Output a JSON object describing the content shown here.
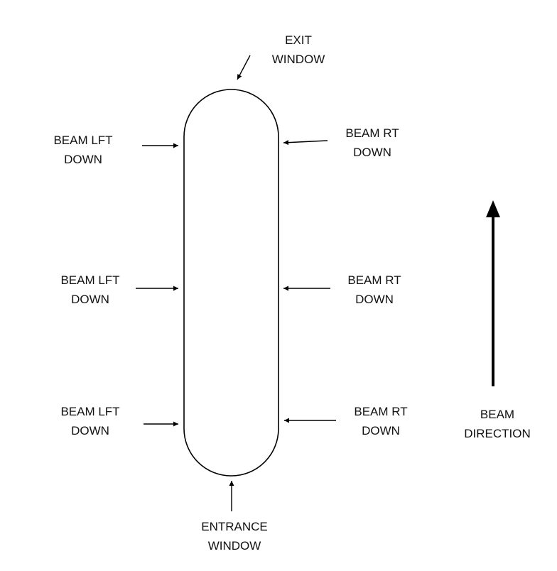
{
  "diagram": {
    "colors": {
      "line": "#000000",
      "text": "#111111",
      "background": "#ffffff"
    },
    "labels": {
      "exit": [
        "EXIT",
        "WINDOW"
      ],
      "entrance": [
        "ENTRANCE",
        "WINDOW"
      ],
      "left_top": [
        "BEAM LFT",
        "DOWN"
      ],
      "left_mid": [
        "BEAM LFT",
        "DOWN"
      ],
      "left_bot": [
        "BEAM LFT",
        "DOWN"
      ],
      "right_top": [
        "BEAM RT",
        "DOWN"
      ],
      "right_mid": [
        "BEAM RT",
        "DOWN"
      ],
      "right_bot": [
        "BEAM RT",
        "DOWN"
      ],
      "beam_direction": [
        "BEAM",
        "DIRECTION"
      ]
    }
  }
}
